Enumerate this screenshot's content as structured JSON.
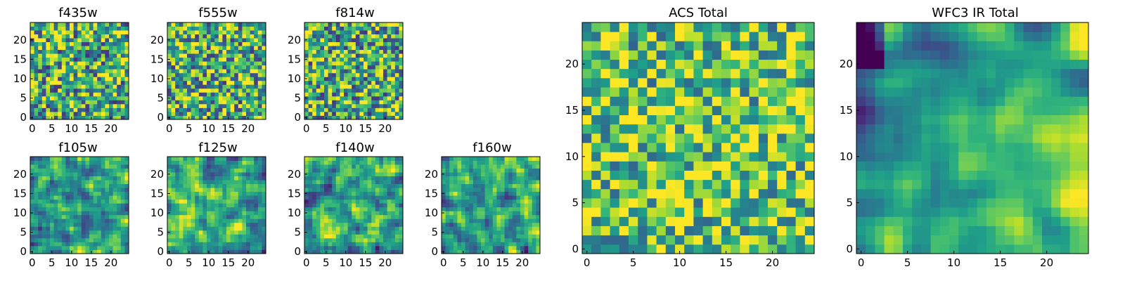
{
  "figure": {
    "description_type": "grid of heatmap panels"
  },
  "chart_data": [
    {
      "type": "heatmap",
      "title": "f435w",
      "grid": [
        25,
        25
      ],
      "x_ticks": [
        "0",
        "5",
        "10",
        "15",
        "20"
      ],
      "y_ticks": [
        "0",
        "5",
        "10",
        "15",
        "20"
      ],
      "xlim": [
        -0.5,
        24.5
      ],
      "ylim": [
        -0.5,
        24.5
      ],
      "seed": 11,
      "smooth": 0,
      "mean": 0.62,
      "spread": 0.95,
      "colormap": "viridis"
    },
    {
      "type": "heatmap",
      "title": "f555w",
      "grid": [
        25,
        25
      ],
      "x_ticks": [
        "0",
        "5",
        "10",
        "15",
        "20"
      ],
      "y_ticks": [
        "0",
        "5",
        "10",
        "15",
        "20"
      ],
      "xlim": [
        -0.5,
        24.5
      ],
      "ylim": [
        -0.5,
        24.5
      ],
      "seed": 23,
      "smooth": 0,
      "mean": 0.64,
      "spread": 0.95,
      "colormap": "viridis"
    },
    {
      "type": "heatmap",
      "title": "f814w",
      "grid": [
        25,
        25
      ],
      "x_ticks": [
        "0",
        "5",
        "10",
        "15",
        "20"
      ],
      "y_ticks": [
        "0",
        "5",
        "10",
        "15",
        "20"
      ],
      "xlim": [
        -0.5,
        24.5
      ],
      "ylim": [
        -0.5,
        24.5
      ],
      "seed": 37,
      "smooth": 0,
      "mean": 0.62,
      "spread": 0.95,
      "colormap": "viridis"
    },
    {
      "type": "heatmap",
      "title": "f105w",
      "grid": [
        25,
        25
      ],
      "x_ticks": [
        "0",
        "5",
        "10",
        "15",
        "20"
      ],
      "y_ticks": [
        "0",
        "5",
        "10",
        "15",
        "20"
      ],
      "xlim": [
        -0.5,
        24.5
      ],
      "ylim": [
        -0.5,
        24.5
      ],
      "seed": 41,
      "smooth": 1,
      "mean": 0.6,
      "spread": 0.95,
      "colormap": "viridis"
    },
    {
      "type": "heatmap",
      "title": "f125w",
      "grid": [
        25,
        25
      ],
      "x_ticks": [
        "0",
        "5",
        "10",
        "15",
        "20"
      ],
      "y_ticks": [
        "0",
        "5",
        "10",
        "15",
        "20"
      ],
      "xlim": [
        -0.5,
        24.5
      ],
      "ylim": [
        -0.5,
        24.5
      ],
      "seed": 53,
      "smooth": 1,
      "mean": 0.58,
      "spread": 1.0,
      "colormap": "viridis"
    },
    {
      "type": "heatmap",
      "title": "f140w",
      "grid": [
        25,
        25
      ],
      "x_ticks": [
        "0",
        "5",
        "10",
        "15",
        "20"
      ],
      "y_ticks": [
        "0",
        "5",
        "10",
        "15",
        "20"
      ],
      "xlim": [
        -0.5,
        24.5
      ],
      "ylim": [
        -0.5,
        24.5
      ],
      "seed": 67,
      "smooth": 1,
      "mean": 0.56,
      "spread": 1.0,
      "colormap": "viridis"
    },
    {
      "type": "heatmap",
      "title": "f160w",
      "grid": [
        25,
        25
      ],
      "x_ticks": [
        "0",
        "5",
        "10",
        "15",
        "20"
      ],
      "y_ticks": [
        "0",
        "5",
        "10",
        "15",
        "20"
      ],
      "xlim": [
        -0.5,
        24.5
      ],
      "ylim": [
        -0.5,
        24.5
      ],
      "seed": 79,
      "smooth": 1,
      "mean": 0.55,
      "spread": 1.0,
      "colormap": "viridis"
    },
    {
      "type": "heatmap",
      "title": "ACS Total",
      "grid": [
        25,
        25
      ],
      "x_ticks": [
        "0",
        "5",
        "10",
        "15",
        "20"
      ],
      "y_ticks": [
        "0",
        "5",
        "10",
        "15",
        "20"
      ],
      "xlim": [
        -0.5,
        24.5
      ],
      "ylim": [
        -0.5,
        24.5
      ],
      "seed": 97,
      "smooth": 0,
      "mean": 0.72,
      "spread": 0.8,
      "colormap": "viridis"
    },
    {
      "type": "heatmap",
      "title": "WFC3 IR Total",
      "grid": [
        25,
        25
      ],
      "x_ticks": [
        "0",
        "5",
        "10",
        "15",
        "20"
      ],
      "y_ticks": [
        "0",
        "5",
        "10",
        "15",
        "20"
      ],
      "xlim": [
        -0.5,
        24.5
      ],
      "ylim": [
        -0.5,
        24.5
      ],
      "seed": 113,
      "smooth": 2,
      "mean": 0.62,
      "spread": 0.8,
      "gradient": true,
      "colormap": "viridis"
    }
  ]
}
